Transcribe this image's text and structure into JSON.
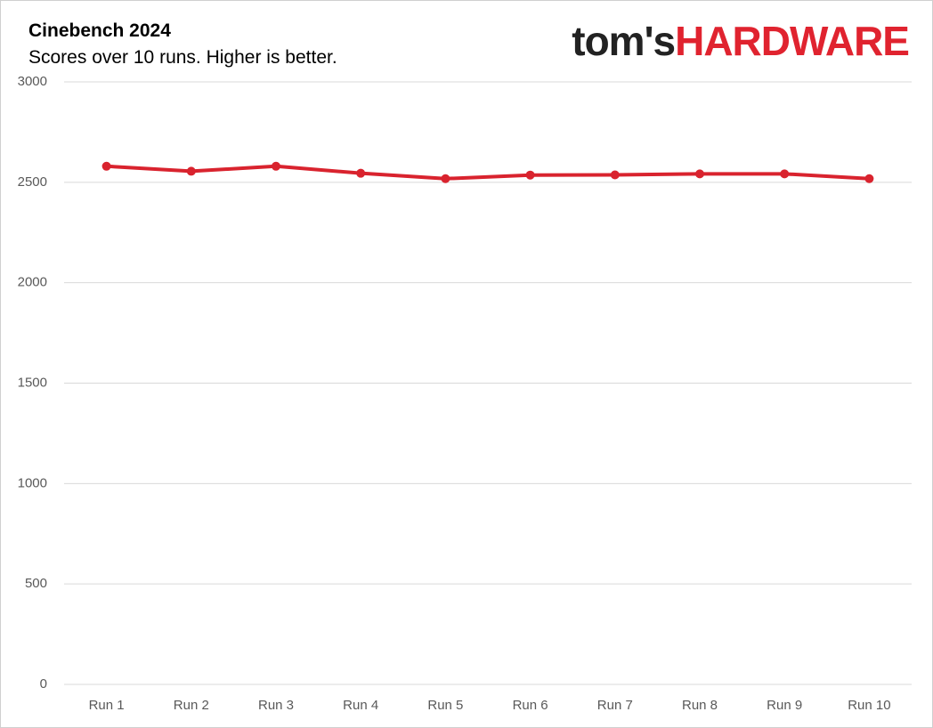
{
  "header": {
    "title": "Cinebench 2024",
    "subtitle": "Scores over 10 runs. Higher is better.",
    "logo_part1": "tom's",
    "logo_part2": "HARDWARE"
  },
  "colors": {
    "series": "#d9232e",
    "grid": "#d9d9d9",
    "logo_dark": "#222222",
    "logo_red": "#e0232f"
  },
  "chart_data": {
    "type": "line",
    "title": "Cinebench 2024",
    "subtitle": "Scores over 10 runs. Higher is better.",
    "categories": [
      "Run 1",
      "Run 2",
      "Run 3",
      "Run 4",
      "Run 5",
      "Run 6",
      "Run 7",
      "Run 8",
      "Run 9",
      "Run 10"
    ],
    "series": [
      {
        "values": [
          2580,
          2555,
          2580,
          2545,
          2518,
          2536,
          2537,
          2542,
          2542,
          2518
        ]
      }
    ],
    "yticks": [
      "0",
      "500",
      "1000",
      "1500",
      "2000",
      "2500",
      "3000"
    ],
    "ylim": [
      0,
      3000
    ],
    "grid": true,
    "legend": "none",
    "markers": true
  }
}
